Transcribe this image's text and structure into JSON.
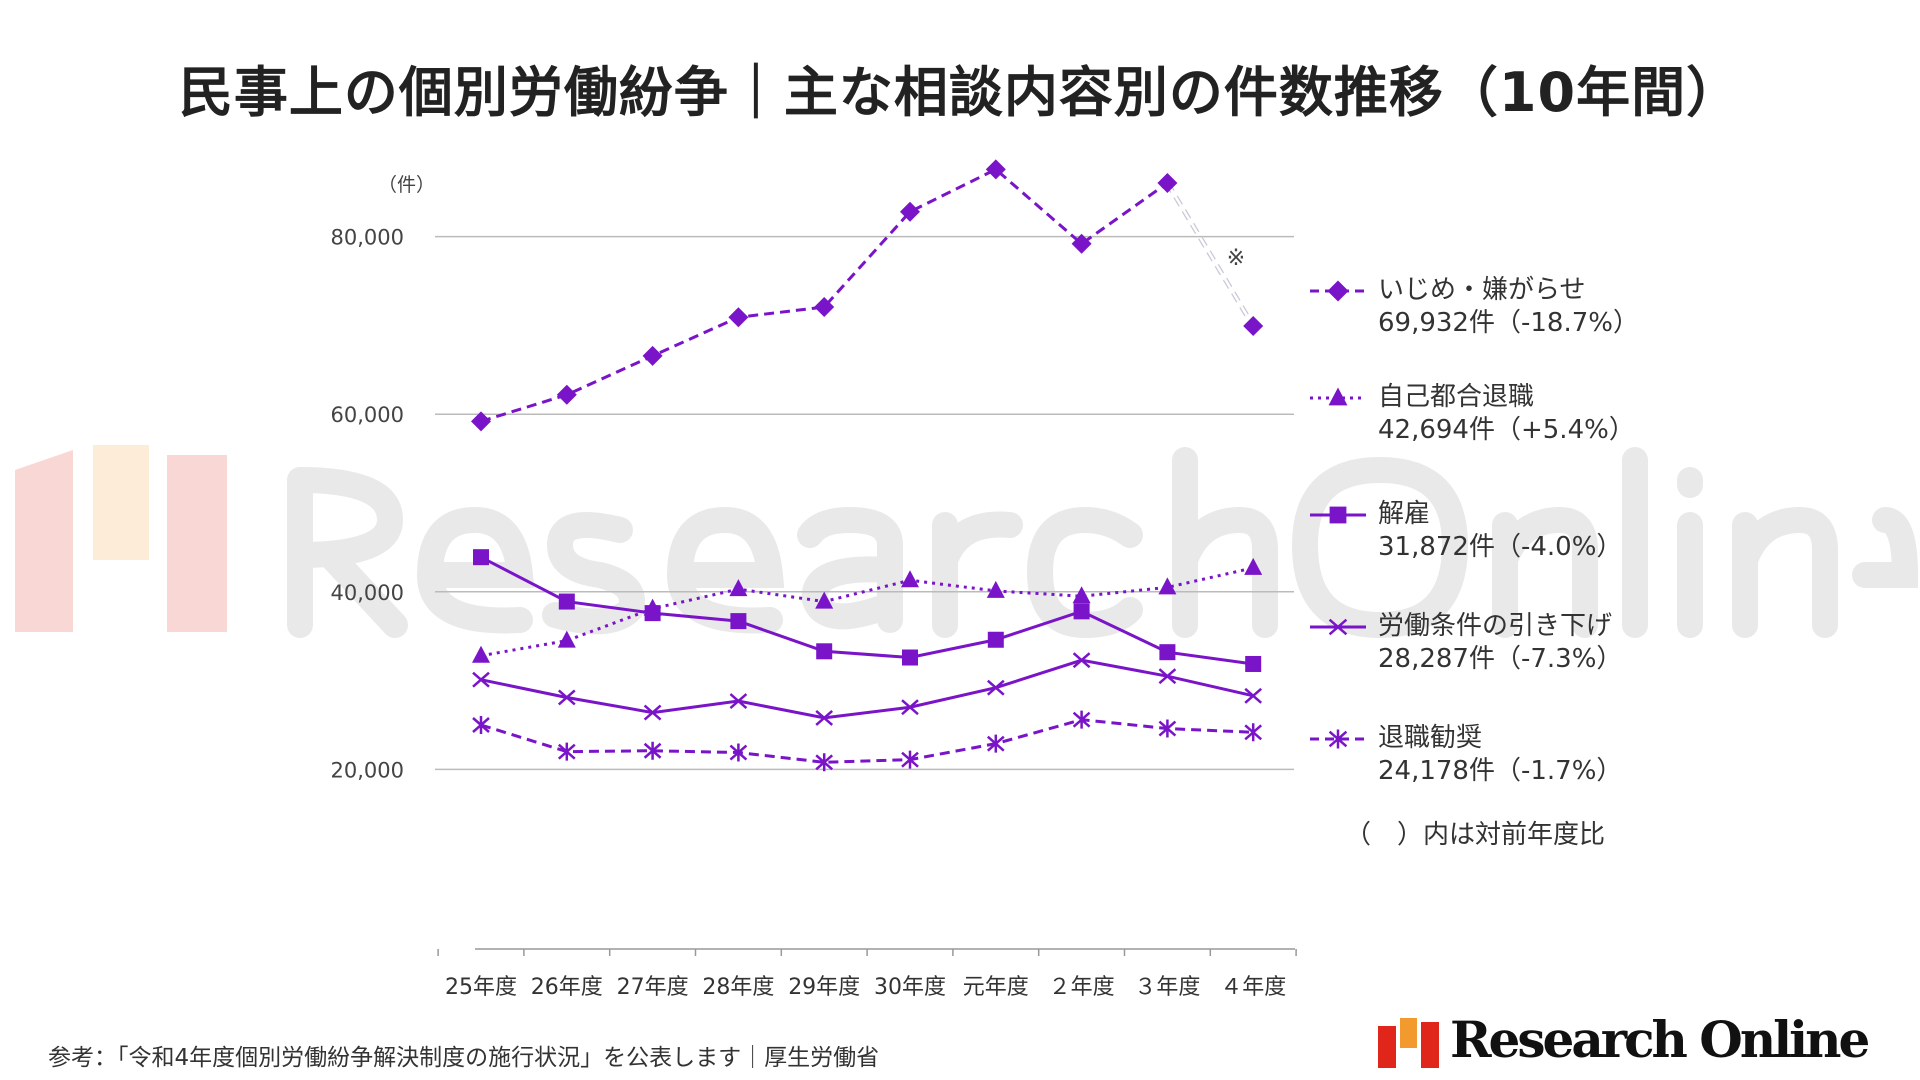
{
  "title": "民事上の個別労働紛争｜主な相談内容別の件数推移（10年間）",
  "watermark": "Research Online",
  "colors": {
    "series": "#7a14c8",
    "grid": "#bbbbbb",
    "axis": "#999999",
    "logo_red": "#e0261b",
    "logo_orange": "#f29a2e"
  },
  "chart_data": {
    "type": "line",
    "title": "民事上の個別労働紛争｜主な相談内容別の件数推移（10年間）",
    "ylabel": "（件）",
    "xlabel": "",
    "ylim": [
      0,
      90000
    ],
    "yticks": [
      20000,
      40000,
      60000,
      80000
    ],
    "ytick_labels": [
      "20,000",
      "40,000",
      "60,000",
      "80,000"
    ],
    "grid": true,
    "legend_position": "right",
    "categories": [
      "25年度",
      "26年度",
      "27年度",
      "28年度",
      "29年度",
      "30年度",
      "元年度",
      "２年度",
      "３年度",
      "４年度"
    ],
    "annotation": "※",
    "series": [
      {
        "name": "いじめ・嫌がらせ",
        "summary": "69,932件（-18.7%）",
        "marker": "diamond",
        "line": "dashed",
        "values": [
          59197,
          62191,
          66566,
          70917,
          72067,
          82797,
          87570,
          79190,
          86034,
          69932
        ]
      },
      {
        "name": "自己都合退職",
        "summary": "42,694件（+5.4%）",
        "marker": "triangle",
        "line": "dotted",
        "values": [
          32800,
          34500,
          38100,
          40300,
          38900,
          41300,
          40100,
          39500,
          40500,
          42694
        ]
      },
      {
        "name": "解雇",
        "summary": "31,872件（-4.0%）",
        "marker": "square",
        "line": "solid",
        "values": [
          43900,
          38900,
          37600,
          36700,
          33300,
          32600,
          34600,
          37800,
          33200,
          31872
        ]
      },
      {
        "name": "労働条件の引き下げ",
        "summary": "28,287件（-7.3%）",
        "marker": "x",
        "line": "solid",
        "values": [
          30100,
          28100,
          26400,
          27700,
          25800,
          27000,
          29200,
          32300,
          30500,
          28287
        ]
      },
      {
        "name": "退職勧奨",
        "summary": "24,178件（-1.7%）",
        "marker": "asterisk",
        "line": "dashed",
        "values": [
          25000,
          22000,
          22100,
          21900,
          20800,
          21100,
          22900,
          25600,
          24600,
          24178
        ]
      }
    ],
    "note": "（　）内は対前年度比"
  },
  "source": "参考：「令和4年度個別労働紛争解決制度の施行状況」を公表します｜厚生労働省",
  "brand": "Research Online"
}
